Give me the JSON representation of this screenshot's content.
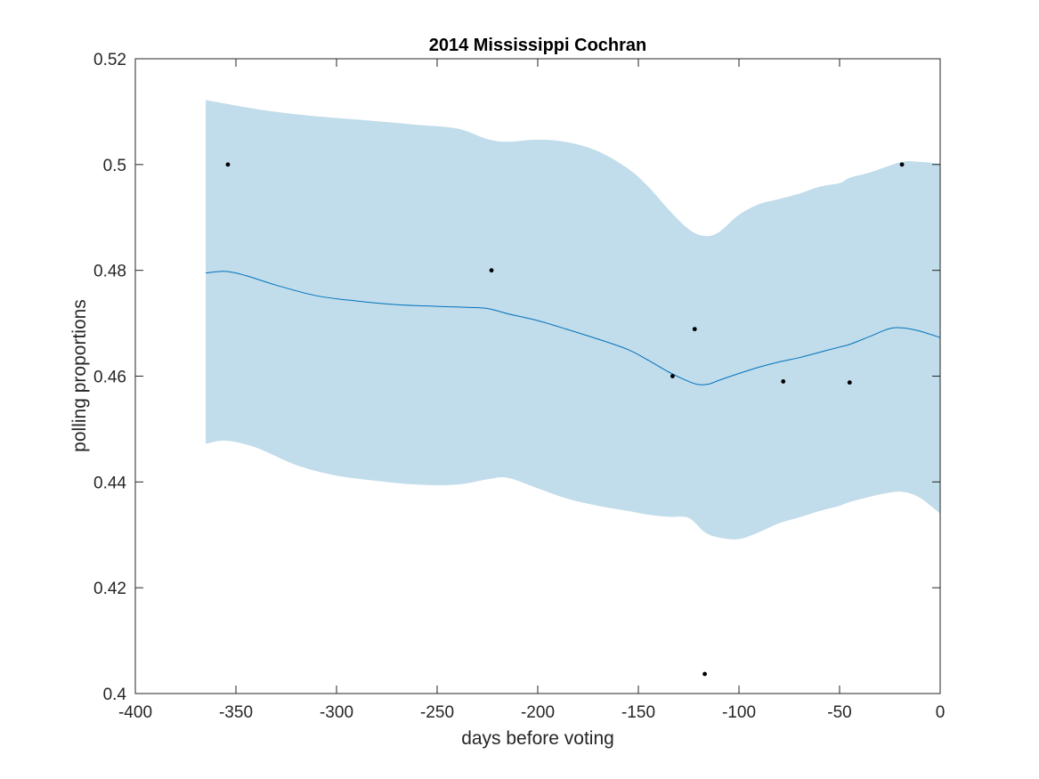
{
  "chart_data": {
    "type": "line",
    "title": "2014 Mississippi Cochran",
    "xlabel": "days before voting",
    "ylabel": "polling proportions",
    "xlim": [
      -400,
      0
    ],
    "ylim": [
      0.4,
      0.52
    ],
    "xticks": [
      -400,
      -350,
      -300,
      -250,
      -200,
      -150,
      -100,
      -50,
      0
    ],
    "xtick_labels": [
      "-400",
      "-350",
      "-300",
      "-250",
      "-200",
      "-150",
      "-100",
      "-50",
      "0"
    ],
    "yticks": [
      0.4,
      0.42,
      0.44,
      0.46,
      0.48,
      0.5,
      0.52
    ],
    "ytick_labels": [
      "0.4",
      "0.42",
      "0.44",
      "0.46",
      "0.48",
      "0.5",
      "0.52"
    ],
    "grid": false,
    "colors": {
      "band": "#c1dcea",
      "mean_line": "#0072bd",
      "points": "#000000",
      "axes": "#262626"
    },
    "series": [
      {
        "kind": "band",
        "x": [
          -365,
          -355,
          -340,
          -320,
          -300,
          -280,
          -260,
          -240,
          -225,
          -215,
          -200,
          -185,
          -170,
          -155,
          -145,
          -135,
          -125,
          -117,
          -110,
          -100,
          -90,
          -80,
          -70,
          -60,
          -50,
          -45,
          -35,
          -25,
          -18,
          -10,
          0
        ],
        "upper": [
          0.5122,
          0.5115,
          0.5105,
          0.5095,
          0.5088,
          0.5082,
          0.5075,
          0.5068,
          0.5048,
          0.5043,
          0.5047,
          0.5042,
          0.5025,
          0.4992,
          0.4958,
          0.4915,
          0.4878,
          0.4865,
          0.4872,
          0.4905,
          0.4925,
          0.4935,
          0.4945,
          0.4958,
          0.4965,
          0.4975,
          0.4985,
          0.4998,
          0.5006,
          0.5005,
          0.5002
        ],
        "lower": [
          0.4472,
          0.4478,
          0.4465,
          0.4432,
          0.4412,
          0.4402,
          0.4395,
          0.4395,
          0.4405,
          0.4408,
          0.4388,
          0.4368,
          0.4355,
          0.4345,
          0.4338,
          0.4334,
          0.4332,
          0.4305,
          0.4295,
          0.4292,
          0.4305,
          0.4322,
          0.4333,
          0.4345,
          0.4355,
          0.4362,
          0.4372,
          0.438,
          0.4381,
          0.437,
          0.434
        ]
      },
      {
        "kind": "mean",
        "x": [
          -365,
          -355,
          -345,
          -330,
          -310,
          -290,
          -270,
          -250,
          -235,
          -225,
          -215,
          -200,
          -185,
          -170,
          -155,
          -145,
          -135,
          -125,
          -120,
          -115,
          -110,
          -100,
          -90,
          -80,
          -70,
          -60,
          -50,
          -45,
          -35,
          -25,
          -18,
          -10,
          0
        ],
        "y": [
          0.4795,
          0.4798,
          0.479,
          0.4772,
          0.4752,
          0.4742,
          0.4735,
          0.4732,
          0.473,
          0.4728,
          0.4718,
          0.4705,
          0.4688,
          0.467,
          0.465,
          0.463,
          0.4608,
          0.459,
          0.4584,
          0.4585,
          0.4592,
          0.4605,
          0.4617,
          0.4627,
          0.4635,
          0.4645,
          0.4655,
          0.466,
          0.4675,
          0.469,
          0.4691,
          0.4685,
          0.4673
        ]
      },
      {
        "kind": "points",
        "x": [
          -354,
          -223,
          -133,
          -122,
          -117,
          -78,
          -45,
          -19
        ],
        "y": [
          0.5,
          0.48,
          0.46,
          0.4689,
          0.4037,
          0.459,
          0.4588,
          0.5
        ]
      }
    ]
  }
}
